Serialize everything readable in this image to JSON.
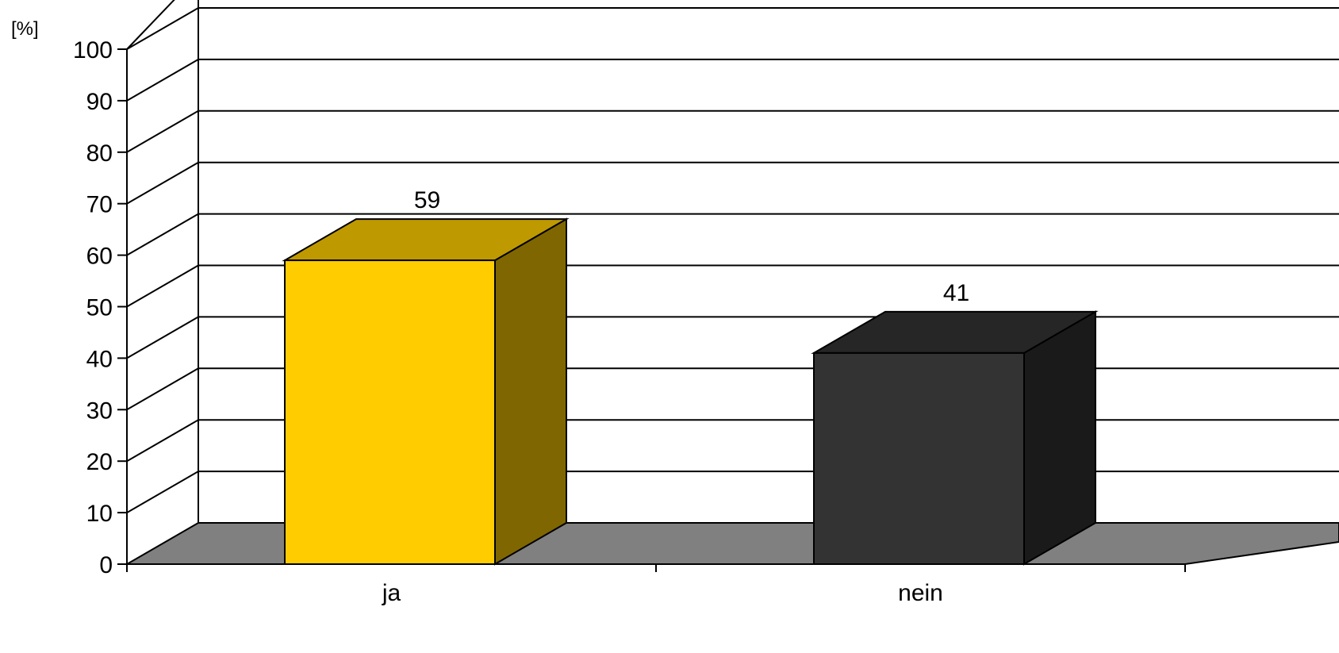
{
  "chart_data": {
    "type": "bar",
    "style": "3d-column",
    "unit_label": "[%]",
    "categories": [
      "ja",
      "nein"
    ],
    "values": [
      59,
      41
    ],
    "data_labels": [
      "59",
      "41"
    ],
    "ylim": [
      0,
      100
    ],
    "yticks": [
      0,
      10,
      20,
      30,
      40,
      50,
      60,
      70,
      80,
      90,
      100
    ],
    "grid": true,
    "legend": "none",
    "colors": {
      "bars": [
        "#FFCC00",
        "#333333"
      ],
      "bar_tops": [
        "#BF9900",
        "#262626"
      ],
      "bar_sides": [
        "#806600",
        "#1A1A1A"
      ],
      "floor": "#808080",
      "grid": "#000000",
      "background": "#FFFFFF"
    }
  }
}
